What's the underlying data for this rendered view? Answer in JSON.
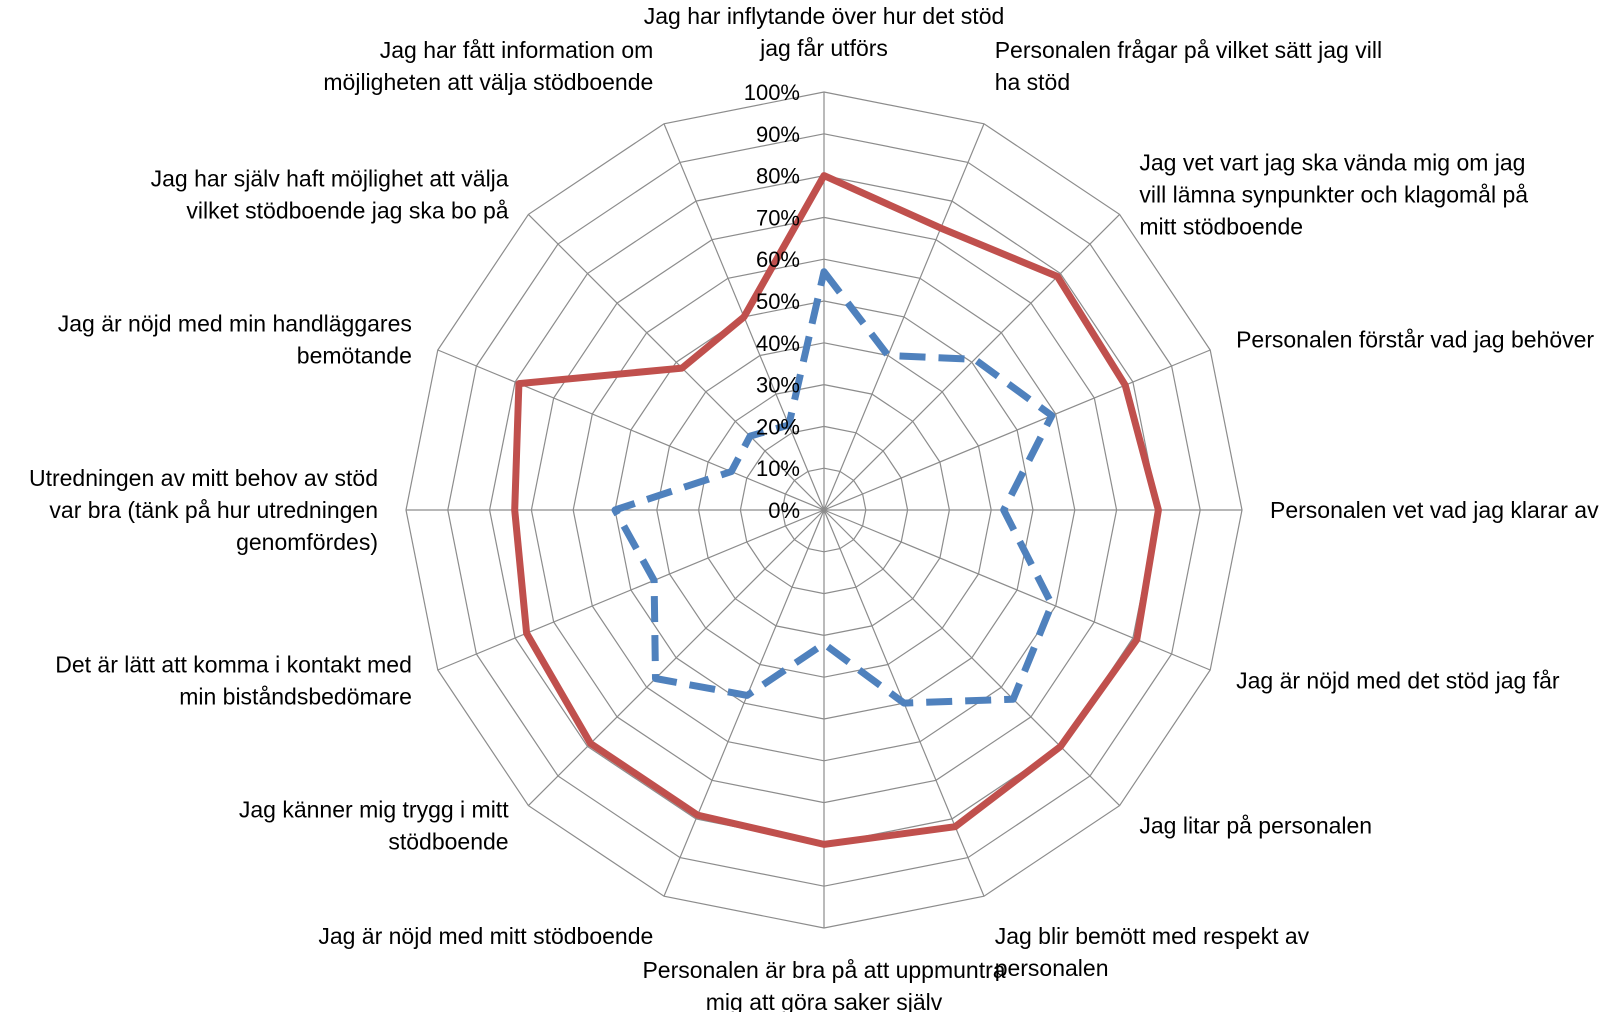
{
  "chart_data": {
    "type": "radar",
    "axis_range": [
      0,
      100
    ],
    "axis_unit": "%",
    "grid": true,
    "legend": "none",
    "tick_labels": [
      "0%",
      "10%",
      "20%",
      "30%",
      "40%",
      "50%",
      "60%",
      "70%",
      "80%",
      "90%",
      "100%"
    ],
    "categories": [
      [
        "Jag har inflytande över hur det stöd",
        "jag får utförs"
      ],
      [
        "Personalen frågar på vilket sätt jag vill",
        "ha stöd"
      ],
      [
        "Jag vet vart jag ska vända mig om jag",
        "vill lämna synpunkter och klagomål på",
        "mitt stödboende"
      ],
      [
        "Personalen förstår vad jag behöver"
      ],
      [
        "Personalen vet vad jag klarar av"
      ],
      [
        "Jag är nöjd med det stöd jag får"
      ],
      [
        "Jag litar på personalen"
      ],
      [
        "Jag blir bemött med respekt av",
        "personalen"
      ],
      [
        "Personalen är bra på att uppmuntra",
        "mig att göra saker själv"
      ],
      [
        "Jag är nöjd med mitt stödboende"
      ],
      [
        "Jag känner mig trygg i mitt",
        "stödboende"
      ],
      [
        "Det är lätt att komma i kontakt med",
        "min biståndsbedömare"
      ],
      [
        "Utredningen av mitt behov av stöd",
        "var bra (tänk på hur utredningen",
        "genomfördes)"
      ],
      [
        "Jag är nöjd med min handläggares",
        "bemötande"
      ],
      [
        "Jag har själv haft möjlighet att välja",
        "vilket stödboende jag ska bo på"
      ],
      [
        "Jag har fått information om",
        "möjligheten att välja stödboende"
      ]
    ],
    "series": [
      {
        "color": "#c0504d",
        "dash": "solid",
        "values": [
          80,
          73,
          79,
          78,
          80,
          81,
          80,
          82,
          80,
          79,
          79,
          77,
          74,
          79,
          48,
          50
        ]
      },
      {
        "color": "#4f81bd",
        "dash": "dashed",
        "values": [
          57,
          40,
          51,
          59,
          43,
          59,
          64,
          50,
          32,
          48,
          57,
          44,
          50,
          24,
          25,
          22
        ]
      }
    ]
  }
}
